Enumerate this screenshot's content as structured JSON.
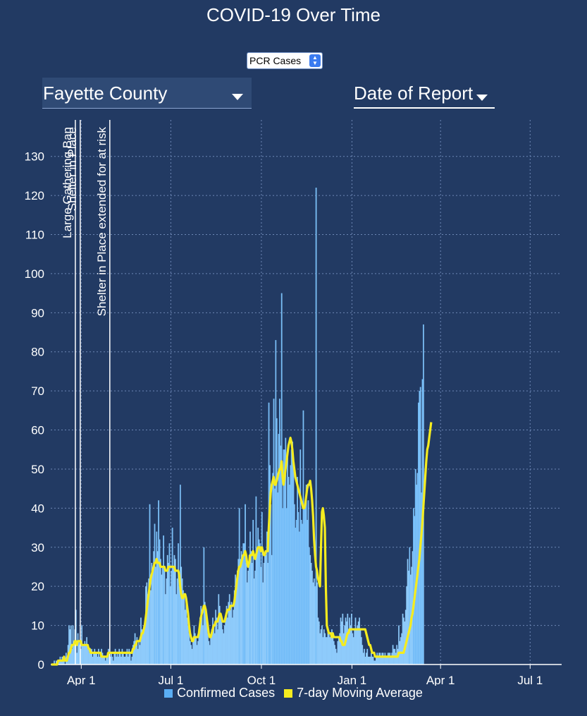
{
  "title": "COVID-19 Over Time",
  "metric_select": {
    "value": "PCR Cases"
  },
  "region_select": {
    "value": "Fayette County"
  },
  "date_select": {
    "value": "Date of Report"
  },
  "legend": [
    {
      "label": "Confirmed Cases",
      "color": "#5aaef5"
    },
    {
      "label": "7-day Moving Average",
      "color": "#f5ec1f"
    }
  ],
  "colors": {
    "background": "#223a63",
    "bars": "#8ecbfb",
    "bar_edge": "#5aaef5",
    "average": "#f5ec1f"
  },
  "chart_data": {
    "type": "bar",
    "title": "COVID-19 Over Time",
    "xlabel": "",
    "ylabel": "",
    "ylim": [
      0,
      135
    ],
    "yticks": [
      0,
      10,
      20,
      30,
      40,
      50,
      60,
      70,
      80,
      90,
      100,
      110,
      120,
      130
    ],
    "x_range": [
      "2020-03-01",
      "2021-08-02"
    ],
    "xticks": [
      {
        "date": "2020-04-01",
        "label": "Apr 1"
      },
      {
        "date": "2020-07-01",
        "label": "Jul 1"
      },
      {
        "date": "2020-10-01",
        "label": "Oct 1"
      },
      {
        "date": "2021-01-01",
        "label": "Jan 1"
      },
      {
        "date": "2021-04-01",
        "label": "Apr 1"
      },
      {
        "date": "2021-07-01",
        "label": "Jul 1"
      }
    ],
    "grid": true,
    "annotations": [
      {
        "date": "2020-03-26",
        "label": "Large Gathering Ban"
      },
      {
        "date": "2020-03-31",
        "label": "Shelter in Place"
      },
      {
        "date": "2020-04-30",
        "label": "Shelter in Place extended for at risk"
      }
    ],
    "series": [
      {
        "name": "Confirmed Cases",
        "kind": "bar",
        "start_date": "2020-03-01",
        "values": [
          0,
          0,
          0,
          1,
          0,
          1,
          0,
          1,
          1,
          2,
          1,
          2,
          1,
          2,
          0,
          3,
          2,
          5,
          10,
          9,
          10,
          4,
          10,
          5,
          9,
          14,
          3,
          8,
          6,
          5,
          4,
          10,
          5,
          5,
          6,
          5,
          7,
          4,
          4,
          3,
          3,
          4,
          2,
          3,
          4,
          3,
          3,
          2,
          4,
          2,
          3,
          4,
          3,
          2,
          2,
          1,
          2,
          3,
          4,
          3,
          2,
          3,
          2,
          1,
          3,
          4,
          2,
          3,
          2,
          4,
          3,
          2,
          4,
          3,
          2,
          2,
          3,
          4,
          2,
          4,
          3,
          1,
          2,
          5,
          6,
          8,
          5,
          7,
          4,
          6,
          5,
          12,
          9,
          8,
          10,
          11,
          20,
          21,
          18,
          22,
          41,
          19,
          26,
          24,
          29,
          36,
          25,
          34,
          29,
          42,
          32,
          27,
          23,
          25,
          33,
          24,
          18,
          22,
          28,
          26,
          31,
          20,
          24,
          35,
          25,
          28,
          27,
          18,
          22,
          31,
          20,
          46,
          25,
          22,
          19,
          18,
          14,
          16,
          12,
          10,
          8,
          6,
          5,
          4,
          6,
          10,
          8,
          7,
          5,
          6,
          9,
          12,
          15,
          14,
          10,
          30,
          16,
          13,
          12,
          8,
          6,
          5,
          7,
          9,
          12,
          10,
          8,
          14,
          12,
          9,
          18,
          15,
          13,
          11,
          9,
          8,
          10,
          12,
          15,
          12,
          16,
          18,
          14,
          16,
          12,
          14,
          19,
          23,
          21,
          24,
          27,
          40,
          27,
          29,
          28,
          31,
          31,
          41,
          26,
          21,
          24,
          28,
          34,
          29,
          26,
          37,
          22,
          24,
          43,
          29,
          35,
          32,
          31,
          25,
          39,
          21,
          26,
          28,
          28,
          34,
          26,
          67,
          51,
          41,
          28,
          49,
          68,
          45,
          83,
          63,
          44,
          59,
          68,
          56,
          95,
          40,
          55,
          55,
          58,
          40,
          53,
          48,
          46,
          51,
          55,
          57,
          51,
          41,
          35,
          37,
          48,
          39,
          34,
          55,
          37,
          36,
          65,
          40,
          41,
          46,
          37,
          42,
          30,
          28,
          26,
          24,
          21,
          22,
          20,
          122,
          21,
          12,
          11,
          8,
          9,
          10,
          7,
          9,
          8,
          7,
          7,
          9,
          8,
          7,
          8,
          9,
          7,
          6,
          5,
          4,
          3,
          6,
          7,
          8,
          12,
          11,
          13,
          8,
          10,
          12,
          11,
          13,
          9,
          12,
          10,
          13,
          8,
          7,
          9,
          12,
          9,
          10,
          11,
          12,
          9,
          7,
          5,
          3,
          4,
          2,
          3,
          4,
          2,
          2,
          2,
          3,
          2,
          2,
          1,
          1,
          2,
          3,
          2,
          3,
          3,
          2,
          3,
          3,
          2,
          3,
          2,
          2,
          3,
          3,
          3,
          2,
          3,
          5,
          4,
          4,
          3,
          5,
          4,
          10,
          6,
          7,
          8,
          13,
          12,
          11,
          14,
          20,
          27,
          24,
          30,
          23,
          25,
          29,
          40,
          38,
          50,
          46,
          49,
          67,
          70,
          71,
          44,
          73,
          87
        ]
      },
      {
        "name": "7-day Moving Average",
        "kind": "line",
        "start_date": "2020-03-01",
        "values": [
          0,
          0,
          0,
          0,
          0,
          0,
          0,
          1,
          1,
          1,
          1,
          1,
          1,
          2,
          1,
          1,
          1,
          2,
          3,
          3,
          4,
          5,
          5,
          5,
          6,
          6,
          5,
          6,
          6,
          6,
          6,
          5,
          5,
          5,
          5,
          5,
          5,
          5,
          4,
          4,
          3,
          3,
          3,
          3,
          3,
          3,
          3,
          3,
          3,
          3,
          3,
          2,
          2,
          2,
          2,
          2,
          2,
          2,
          3,
          3,
          3,
          3,
          3,
          3,
          3,
          3,
          3,
          3,
          3,
          3,
          3,
          3,
          3,
          3,
          3,
          3,
          3,
          3,
          3,
          3,
          3,
          3,
          3,
          4,
          4,
          5,
          5,
          6,
          6,
          6,
          6,
          7,
          8,
          8,
          9,
          10,
          12,
          14,
          16,
          18,
          20,
          22,
          23,
          24,
          25,
          26,
          26,
          27,
          26,
          26,
          26,
          25,
          25,
          25,
          25,
          25,
          24,
          24,
          24,
          25,
          25,
          25,
          25,
          25,
          25,
          25,
          24,
          24,
          24,
          24,
          23,
          20,
          18,
          17,
          17,
          18,
          18,
          17,
          15,
          13,
          10,
          8,
          7,
          6,
          6,
          7,
          7,
          7,
          7,
          7,
          8,
          10,
          12,
          13,
          14,
          15,
          15,
          14,
          12,
          10,
          8,
          7,
          7,
          8,
          9,
          10,
          10,
          11,
          11,
          11,
          12,
          13,
          13,
          12,
          11,
          11,
          11,
          12,
          13,
          14,
          14,
          14,
          15,
          15,
          15,
          15,
          16,
          18,
          20,
          22,
          24,
          25,
          25,
          26,
          27,
          28,
          28,
          29,
          28,
          26,
          25,
          26,
          28,
          28,
          28,
          29,
          28,
          27,
          28,
          29,
          30,
          30,
          30,
          29,
          30,
          29,
          28,
          28,
          29,
          29,
          29,
          35,
          40,
          44,
          46,
          47,
          48,
          46,
          46,
          47,
          48,
          49,
          50,
          50,
          52,
          48,
          46,
          48,
          50,
          52,
          54,
          56,
          57,
          58,
          57,
          55,
          52,
          50,
          48,
          47,
          46,
          45,
          44,
          43,
          42,
          41,
          40,
          40,
          41,
          43,
          45,
          46,
          46,
          47,
          45,
          42,
          38,
          32,
          28,
          25,
          24,
          22,
          21,
          20,
          30,
          39,
          40,
          38,
          35,
          20,
          10,
          9,
          8,
          8,
          8,
          7,
          8,
          7,
          7,
          7,
          7,
          7,
          7,
          7,
          6,
          6,
          5,
          5,
          5,
          6,
          7,
          8,
          8,
          9,
          9,
          9,
          9,
          9,
          9,
          9,
          9,
          9,
          9,
          9,
          9,
          9,
          9,
          9,
          9,
          9,
          8,
          7,
          6,
          5,
          5,
          4,
          3,
          3,
          3,
          2,
          2,
          2,
          2,
          2,
          2,
          2,
          2,
          2,
          2,
          2,
          2,
          2,
          2,
          2,
          2,
          2,
          2,
          2,
          2,
          2,
          2,
          2,
          2,
          3,
          3,
          3,
          3,
          3,
          3,
          4,
          5,
          6,
          7,
          8,
          9,
          10,
          12,
          13,
          15,
          17,
          19,
          21,
          23,
          25,
          27,
          30,
          33,
          36,
          40,
          44,
          48,
          52,
          55,
          56,
          58,
          60,
          62
        ]
      }
    ]
  }
}
